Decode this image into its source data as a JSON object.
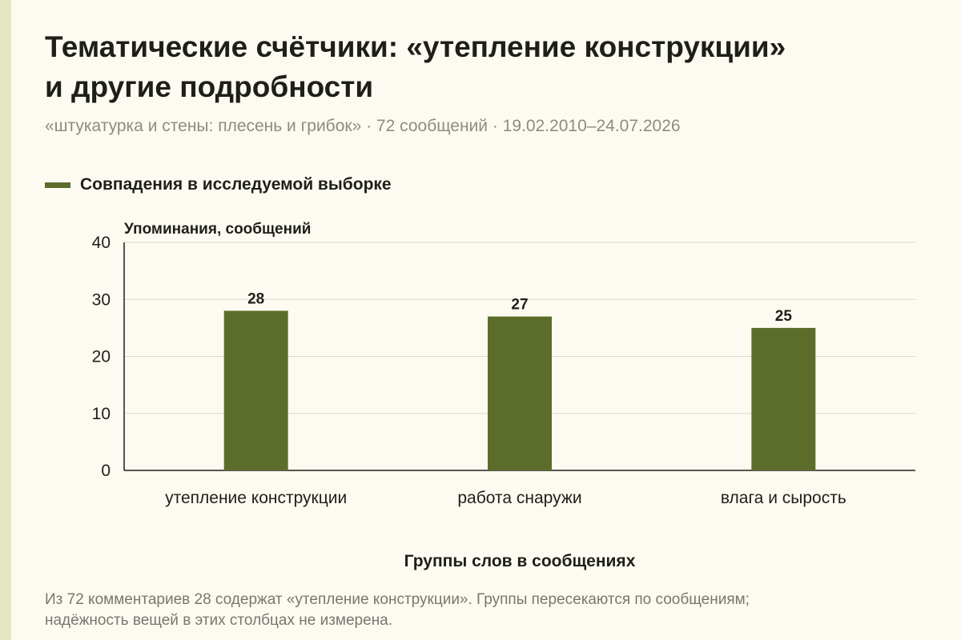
{
  "title_lines": [
    "Тематические счётчики: «утепление конструкции»",
    "и другие подробности"
  ],
  "subtitle": "«штукатурка и стены: плесень и грибок» · 72 сообщений · 19.02.2010–24.07.2026",
  "footnote": "Из 72 комментариев 28 содержат «утепление конструкции». Группы пересекаются по сообщениям; надёжность вещей в этих столбцах не измерена.",
  "colors": {
    "bar": "#5c6d2b",
    "background": "#fdfbf1",
    "grid": "#d9d9d0",
    "axis": "#1f1f1a",
    "stripe": "#e3e8c3"
  },
  "chart_data": {
    "type": "bar",
    "categories": [
      "утепление конструкции",
      "работа снаружи",
      "влага и сырость"
    ],
    "series": [
      {
        "name": "Совпадения в исследуемой выборке",
        "values": [
          28,
          27,
          25
        ]
      }
    ],
    "ylabel": "Упоминания, сообщений",
    "xlabel": "Группы слов в сообщениях",
    "ylim": [
      0,
      40
    ],
    "yticks": [
      0,
      10,
      20,
      30,
      40
    ],
    "grid": true,
    "legend_position": "top-left"
  }
}
